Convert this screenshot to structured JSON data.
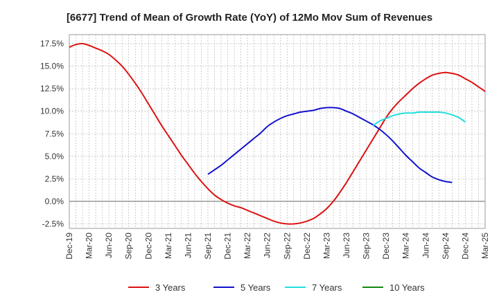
{
  "chart_data": {
    "type": "line",
    "title": "[6677]  Trend of Mean of Growth Rate (YoY) of 12Mo Mov Sum of Revenues",
    "xlabel": "",
    "ylabel": "",
    "ylim": [
      -3.0,
      18.5
    ],
    "yticks": [
      -2.5,
      0.0,
      2.5,
      5.0,
      7.5,
      10.0,
      12.5,
      15.0,
      17.5
    ],
    "ytick_labels": [
      "-2.5%",
      "0.0%",
      "2.5%",
      "5.0%",
      "7.5%",
      "10.0%",
      "12.5%",
      "15.0%",
      "17.5%"
    ],
    "x_tick_labels": [
      "Dec-19",
      "Mar-20",
      "Jun-20",
      "Sep-20",
      "Dec-20",
      "Mar-21",
      "Jun-21",
      "Sep-21",
      "Dec-21",
      "Mar-22",
      "Jun-22",
      "Sep-22",
      "Dec-22",
      "Mar-23",
      "Jun-23",
      "Sep-23",
      "Dec-23",
      "Mar-24",
      "Jun-24",
      "Sep-24",
      "Dec-24",
      "Mar-25"
    ],
    "x_count": 64,
    "grid": true,
    "legend_position": "bottom",
    "series": [
      {
        "name": "3 Years",
        "color": "#dd1111",
        "start_index": 0,
        "values": [
          17.1,
          17.4,
          17.5,
          17.3,
          17.0,
          16.7,
          16.3,
          15.7,
          15.0,
          14.1,
          13.1,
          12.0,
          10.8,
          9.6,
          8.4,
          7.3,
          6.2,
          5.1,
          4.1,
          3.1,
          2.2,
          1.4,
          0.7,
          0.2,
          -0.2,
          -0.5,
          -0.7,
          -1.0,
          -1.3,
          -1.6,
          -1.9,
          -2.2,
          -2.4,
          -2.5,
          -2.5,
          -2.4,
          -2.2,
          -1.9,
          -1.4,
          -0.8,
          0.0,
          1.0,
          2.1,
          3.3,
          4.5,
          5.7,
          6.9,
          8.1,
          9.3,
          10.3,
          11.1,
          11.8,
          12.5,
          13.1,
          13.6,
          14.0,
          14.2,
          14.3,
          14.2,
          14.0,
          13.6,
          13.2,
          12.7,
          12.2
        ]
      },
      {
        "name": "5 Years",
        "color": "#1111cc",
        "start_index": 21,
        "values": [
          3.0,
          3.5,
          4.0,
          4.6,
          5.2,
          5.8,
          6.4,
          7.0,
          7.6,
          8.3,
          8.8,
          9.2,
          9.5,
          9.7,
          9.9,
          10.0,
          10.1,
          10.3,
          10.4,
          10.4,
          10.3,
          10.0,
          9.7,
          9.3,
          8.9,
          8.5,
          8.0,
          7.4,
          6.7,
          5.9,
          5.1,
          4.4,
          3.7,
          3.2,
          2.7,
          2.4,
          2.2,
          2.1
        ]
      },
      {
        "name": "7 Years",
        "color": "#22dddd",
        "start_index": 46,
        "values": [
          8.4,
          8.9,
          9.2,
          9.5,
          9.7,
          9.8,
          9.8,
          9.9,
          9.9,
          9.9,
          9.9,
          9.8,
          9.6,
          9.3,
          8.8
        ]
      },
      {
        "name": "10 Years",
        "color": "#118811",
        "start_index": 0,
        "values": []
      }
    ]
  }
}
